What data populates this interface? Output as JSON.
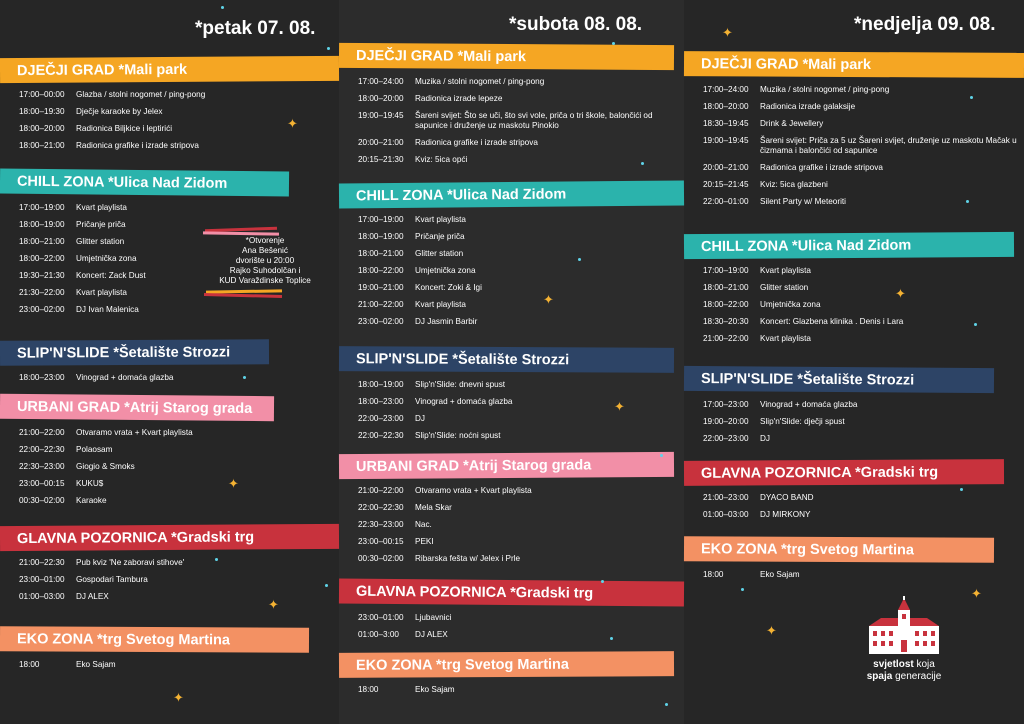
{
  "colors": {
    "orange": "#f5a623",
    "teal": "#2bb3ac",
    "navy": "#2d4466",
    "pink": "#f28fa7",
    "red": "#c8323d",
    "salmon": "#f39163",
    "star": "#f4b233",
    "dot": "#5fd3e8"
  },
  "days": [
    {
      "title": "*petak 07. 08.",
      "sections": [
        {
          "name": "DJEČJI GRAD *Mali park",
          "color": "orange",
          "rows": [
            {
              "time": "17:00–00:00",
              "act": "Glazba / stolni nogomet / ping-pong"
            },
            {
              "time": "18:00–19:30",
              "act": "Dječje karaoke by Jelex"
            },
            {
              "time": "18:00–20:00",
              "act": "Radionica Biljkice i leptirići"
            },
            {
              "time": "18:00–21:00",
              "act": "Radionica grafike i izrade stripova"
            }
          ]
        },
        {
          "name": "CHILL ZONA *Ulica Nad Zidom",
          "color": "teal",
          "rows": [
            {
              "time": "17:00–19:00",
              "act": "Kvart playlista"
            },
            {
              "time": "18:00–19:00",
              "act": "Pričanje priča"
            },
            {
              "time": "18:00–21:00",
              "act": "Glitter station"
            },
            {
              "time": "18:00–22:00",
              "act": "Umjetnička zona"
            },
            {
              "time": "19:30–21:30",
              "act": "Koncert: Zack Dust"
            },
            {
              "time": "21:30–22:00",
              "act": "Kvart playlista"
            },
            {
              "time": "23:00–02:00",
              "act": "DJ Ivan Malenica"
            }
          ]
        },
        {
          "name": "SLIP'N'SLIDE *Šetalište Strozzi",
          "color": "navy",
          "rows": [
            {
              "time": "18:00–23:00",
              "act": "Vinograd + domaća glazba"
            }
          ]
        },
        {
          "name": "URBANI GRAD *Atrij Starog grada",
          "color": "pink",
          "rows": [
            {
              "time": "21:00–22:00",
              "act": "Otvaramo vrata + Kvart playlista"
            },
            {
              "time": "22:00–22:30",
              "act": "Polaosam"
            },
            {
              "time": "22:30–23:00",
              "act": "Giogio & Smoks"
            },
            {
              "time": "23:00–00:15",
              "act": "KUKU$"
            },
            {
              "time": "00:30–02:00",
              "act": "Karaoke"
            }
          ]
        },
        {
          "name": "GLAVNA POZORNICA *Gradski trg",
          "color": "red",
          "rows": [
            {
              "time": "21:00–22:30",
              "act": "Pub kviz 'Ne zaboravi stihove'"
            },
            {
              "time": "23:00–01:00",
              "act": "Gospodari Tambura"
            },
            {
              "time": "01:00–03:00",
              "act": "DJ ALEX"
            }
          ]
        },
        {
          "name": "EKO ZONA *trg Svetog Martina",
          "color": "salmon",
          "rows": [
            {
              "time": "18:00",
              "act": "Eko Sajam"
            }
          ]
        }
      ]
    },
    {
      "title": "*subota 08. 08.",
      "sections": [
        {
          "name": "DJEČJI GRAD *Mali park",
          "color": "orange",
          "rows": [
            {
              "time": "17:00–24:00",
              "act": "Muzika / stolni nogomet / ping-pong"
            },
            {
              "time": "18:00–20:00",
              "act": "Radionica izrade lepeze"
            },
            {
              "time": "19:00–19:45",
              "act": "Šareni svijet: Što se uči, što svi vole, priča o tri škole, balončići od sapunice i druženje uz maskotu Pinokio"
            },
            {
              "time": "20:00–21:00",
              "act": "Radionica grafike i izrade stripova"
            },
            {
              "time": "20:15–21:30",
              "act": "Kviz: 5ica opći"
            }
          ]
        },
        {
          "name": "CHILL ZONA *Ulica Nad Zidom",
          "color": "teal",
          "rows": [
            {
              "time": "17:00–19:00",
              "act": "Kvart playlista"
            },
            {
              "time": "18:00–19:00",
              "act": "Pričanje priča"
            },
            {
              "time": "18:00–21:00",
              "act": "Glitter station"
            },
            {
              "time": "18:00–22:00",
              "act": "Umjetnička zona"
            },
            {
              "time": "19:00–21:00",
              "act": "Koncert: Zoki & Igi"
            },
            {
              "time": "21:00–22:00",
              "act": "Kvart playlista"
            },
            {
              "time": "23:00–02:00",
              "act": "DJ Jasmin Barbir"
            }
          ]
        },
        {
          "name": "SLIP'N'SLIDE *Šetalište Strozzi",
          "color": "navy",
          "rows": [
            {
              "time": "18:00–19:00",
              "act": "Slip'n'Slide: dnevni spust"
            },
            {
              "time": "18:00–23:00",
              "act": "Vinograd + domaća glazba"
            },
            {
              "time": "22:00–23:00",
              "act": "DJ"
            },
            {
              "time": "22:00–22:30",
              "act": "Slip'n'Slide: noćni spust"
            }
          ]
        },
        {
          "name": "URBANI GRAD *Atrij Starog grada",
          "color": "pink",
          "rows": [
            {
              "time": "21:00–22:00",
              "act": "Otvaramo vrata + Kvart playlista"
            },
            {
              "time": "22:00–22:30",
              "act": "Mela Skar"
            },
            {
              "time": "22:30–23:00",
              "act": "Nac."
            },
            {
              "time": "23:00–00:15",
              "act": "PEKI"
            },
            {
              "time": "00:30–02:00",
              "act": "Ribarska fešta w/ Jelex i Prle"
            }
          ]
        },
        {
          "name": "GLAVNA POZORNICA *Gradski trg",
          "color": "red",
          "rows": [
            {
              "time": "23:00–01:00",
              "act": "Ljubavnici"
            },
            {
              "time": "01:00–3:00",
              "act": "DJ ALEX"
            }
          ]
        },
        {
          "name": "EKO ZONA *trg Svetog Martina",
          "color": "salmon",
          "rows": [
            {
              "time": "18:00",
              "act": "Eko Sajam"
            }
          ]
        }
      ]
    },
    {
      "title": "*nedjelja 09. 08.",
      "sections": [
        {
          "name": "DJEČJI GRAD *Mali park",
          "color": "orange",
          "rows": [
            {
              "time": "17:00–24:00",
              "act": "Muzika / stolni nogomet / ping-pong"
            },
            {
              "time": "18:00–20:00",
              "act": "Radionica izrade galaksije"
            },
            {
              "time": "18:30–19:45",
              "act": "Drink & Jewellery"
            },
            {
              "time": "19:00–19:45",
              "act": "Šareni svijet: Priča za 5 uz Šareni svijet, druženje uz maskotu Mačak u čizmama i balončići od sapunice"
            },
            {
              "time": "20:00–21:00",
              "act": "Radionica grafike i izrade stripova"
            },
            {
              "time": "20:15–21:45",
              "act": "Kviz: 5ica glazbeni"
            },
            {
              "time": "22:00–01:00",
              "act": "Silent Party w/ Meteoriti"
            }
          ]
        },
        {
          "name": "CHILL ZONA *Ulica Nad Zidom",
          "color": "teal",
          "rows": [
            {
              "time": "17:00–19:00",
              "act": "Kvart playlista"
            },
            {
              "time": "18:00–21:00",
              "act": "Glitter station"
            },
            {
              "time": "18:00–22:00",
              "act": "Umjetnička zona"
            },
            {
              "time": "18:30–20:30",
              "act": "Koncert: Glazbena klinika . Denis i Lara"
            },
            {
              "time": "21:00–22:00",
              "act": "Kvart playlista"
            }
          ]
        },
        {
          "name": "SLIP'N'SLIDE *Šetalište Strozzi",
          "color": "navy",
          "rows": [
            {
              "time": "17:00–23:00",
              "act": "Vinograd + domaća glazba"
            },
            {
              "time": "19:00–20:00",
              "act": "Slip'n'Slide: dječji spust"
            },
            {
              "time": "22:00–23:00",
              "act": "DJ"
            }
          ]
        },
        {
          "name": "GLAVNA POZORNICA *Gradski trg",
          "color": "red",
          "rows": [
            {
              "time": "21:00–23:00",
              "act": "DYACO BAND"
            },
            {
              "time": "01:00–03:00",
              "act": "DJ MIRKONY"
            }
          ]
        },
        {
          "name": "EKO ZONA *trg Svetog Martina",
          "color": "salmon",
          "rows": [
            {
              "time": "18:00",
              "act": "Eko Sajam"
            }
          ]
        }
      ]
    }
  ],
  "note": {
    "lines": [
      "*Otvorenje",
      "Ana Bešenić",
      "dvorište u 20:00",
      "Rajko Suhodolčan i",
      "KUD Varaždinske Toplice"
    ]
  },
  "logo": {
    "line1_bold": "svjetlost",
    "line1_rest": " koja",
    "line2_bold": "spaja",
    "line2_rest": " generacije"
  }
}
